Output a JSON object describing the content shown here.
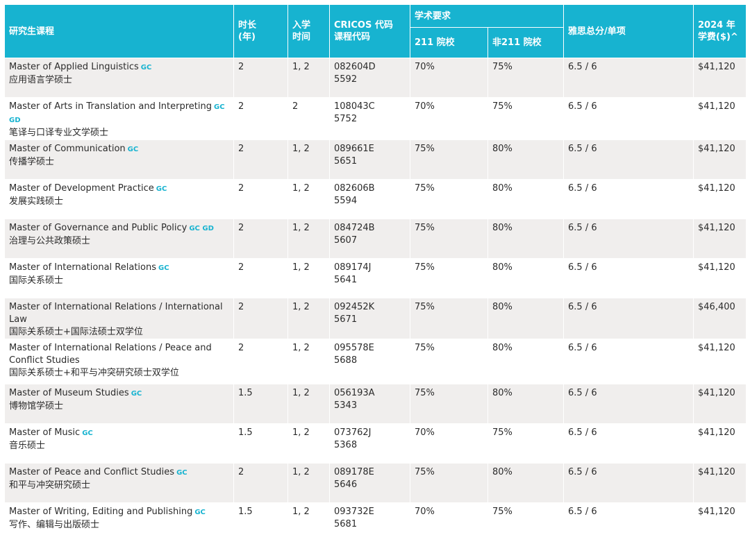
{
  "header": {
    "program": "研究生课程",
    "duration": "时长\n(年)",
    "intake": "入学\n时间",
    "cricos": "CRICOS 代码\n课程代码",
    "academic": "学术要求",
    "uni211": "211 院校",
    "non211": "非211 院校",
    "ielts": "雅思总分/单项",
    "fee": "2024 年\n学费($)^"
  },
  "rows": [
    {
      "en": "Master of Applied Linguistics",
      "tags": "GC",
      "cn": "应用语言学硕士",
      "duration": "2",
      "intake": "1, 2",
      "cricos": "082604D",
      "code": "5592",
      "r211": "70%",
      "rnon211": "75%",
      "ielts": "6.5 / 6",
      "fee": "$41,120"
    },
    {
      "en": "Master of Arts in Translation and Interpreting",
      "tags": "GC GD",
      "cn": "笔译与口译专业文学硕士",
      "duration": "2",
      "intake": "2",
      "cricos": "108043C",
      "code": "5752",
      "r211": "70%",
      "rnon211": "75%",
      "ielts": "6.5 / 6",
      "fee": "$41,120"
    },
    {
      "en": "Master of Communication",
      "tags": "GC",
      "cn": "传播学硕士",
      "duration": "2",
      "intake": "1, 2",
      "cricos": "089661E",
      "code": "5651",
      "r211": "75%",
      "rnon211": "80%",
      "ielts": "6.5 / 6",
      "fee": "$41,120"
    },
    {
      "en": "Master of Development Practice",
      "tags": "GC",
      "cn": "发展实践硕士",
      "duration": "2",
      "intake": "1, 2",
      "cricos": "082606B",
      "code": "5594",
      "r211": "75%",
      "rnon211": "80%",
      "ielts": "6.5 / 6",
      "fee": "$41,120"
    },
    {
      "en": "Master of Governance and Public Policy",
      "tags": "GC GD",
      "cn": "治理与公共政策硕士",
      "duration": "2",
      "intake": "1, 2",
      "cricos": "084724B",
      "code": "5607",
      "r211": "75%",
      "rnon211": "80%",
      "ielts": "6.5 / 6",
      "fee": "$41,120"
    },
    {
      "en": "Master of International Relations",
      "tags": "GC",
      "cn": "国际关系硕士",
      "duration": "2",
      "intake": "1, 2",
      "cricos": "089174J",
      "code": "5641",
      "r211": "75%",
      "rnon211": "80%",
      "ielts": "6.5 / 6",
      "fee": "$41,120"
    },
    {
      "en": "Master of International Relations / International Law",
      "tags": "",
      "cn": "国际关系硕士+国际法硕士双学位",
      "duration": "2",
      "intake": "1, 2",
      "cricos": "092452K",
      "code": "5671",
      "r211": "75%",
      "rnon211": "80%",
      "ielts": "6.5 / 6",
      "fee": "$46,400"
    },
    {
      "en": "Master of International Relations / Peace and Conflict Studies",
      "tags": "",
      "cn": "国际关系硕士+和平与冲突研究硕士双学位",
      "duration": "2",
      "intake": "1, 2",
      "cricos": "095578E",
      "code": "5688",
      "r211": "75%",
      "rnon211": "80%",
      "ielts": "6.5 / 6",
      "fee": "$41,120"
    },
    {
      "en": "Master of Museum Studies",
      "tags": "GC",
      "cn": "博物馆学硕士",
      "duration": "1.5",
      "intake": "1, 2",
      "cricos": "056193A",
      "code": "5343",
      "r211": "75%",
      "rnon211": "80%",
      "ielts": "6.5 / 6",
      "fee": "$41,120"
    },
    {
      "en": "Master of Music",
      "tags": "GC",
      "cn": "音乐硕士",
      "duration": "1.5",
      "intake": "1, 2",
      "cricos": "073762J",
      "code": "5368",
      "r211": "70%",
      "rnon211": "75%",
      "ielts": "6.5 / 6",
      "fee": "$41,120"
    },
    {
      "en": "Master of Peace and Conflict Studies",
      "tags": "GC",
      "cn": "和平与冲突研究硕士",
      "duration": "2",
      "intake": "1, 2",
      "cricos": "089178E",
      "code": "5646",
      "r211": "75%",
      "rnon211": "80%",
      "ielts": "6.5 / 6",
      "fee": "$41,120"
    },
    {
      "en": "Master of Writing, Editing and Publishing",
      "tags": "GC",
      "cn": "写作、编辑与出版硕士",
      "duration": "1.5",
      "intake": "1, 2",
      "cricos": "093732E",
      "code": "5681",
      "r211": "70%",
      "rnon211": "75%",
      "ielts": "6.5 / 6",
      "fee": "$41,120"
    }
  ]
}
